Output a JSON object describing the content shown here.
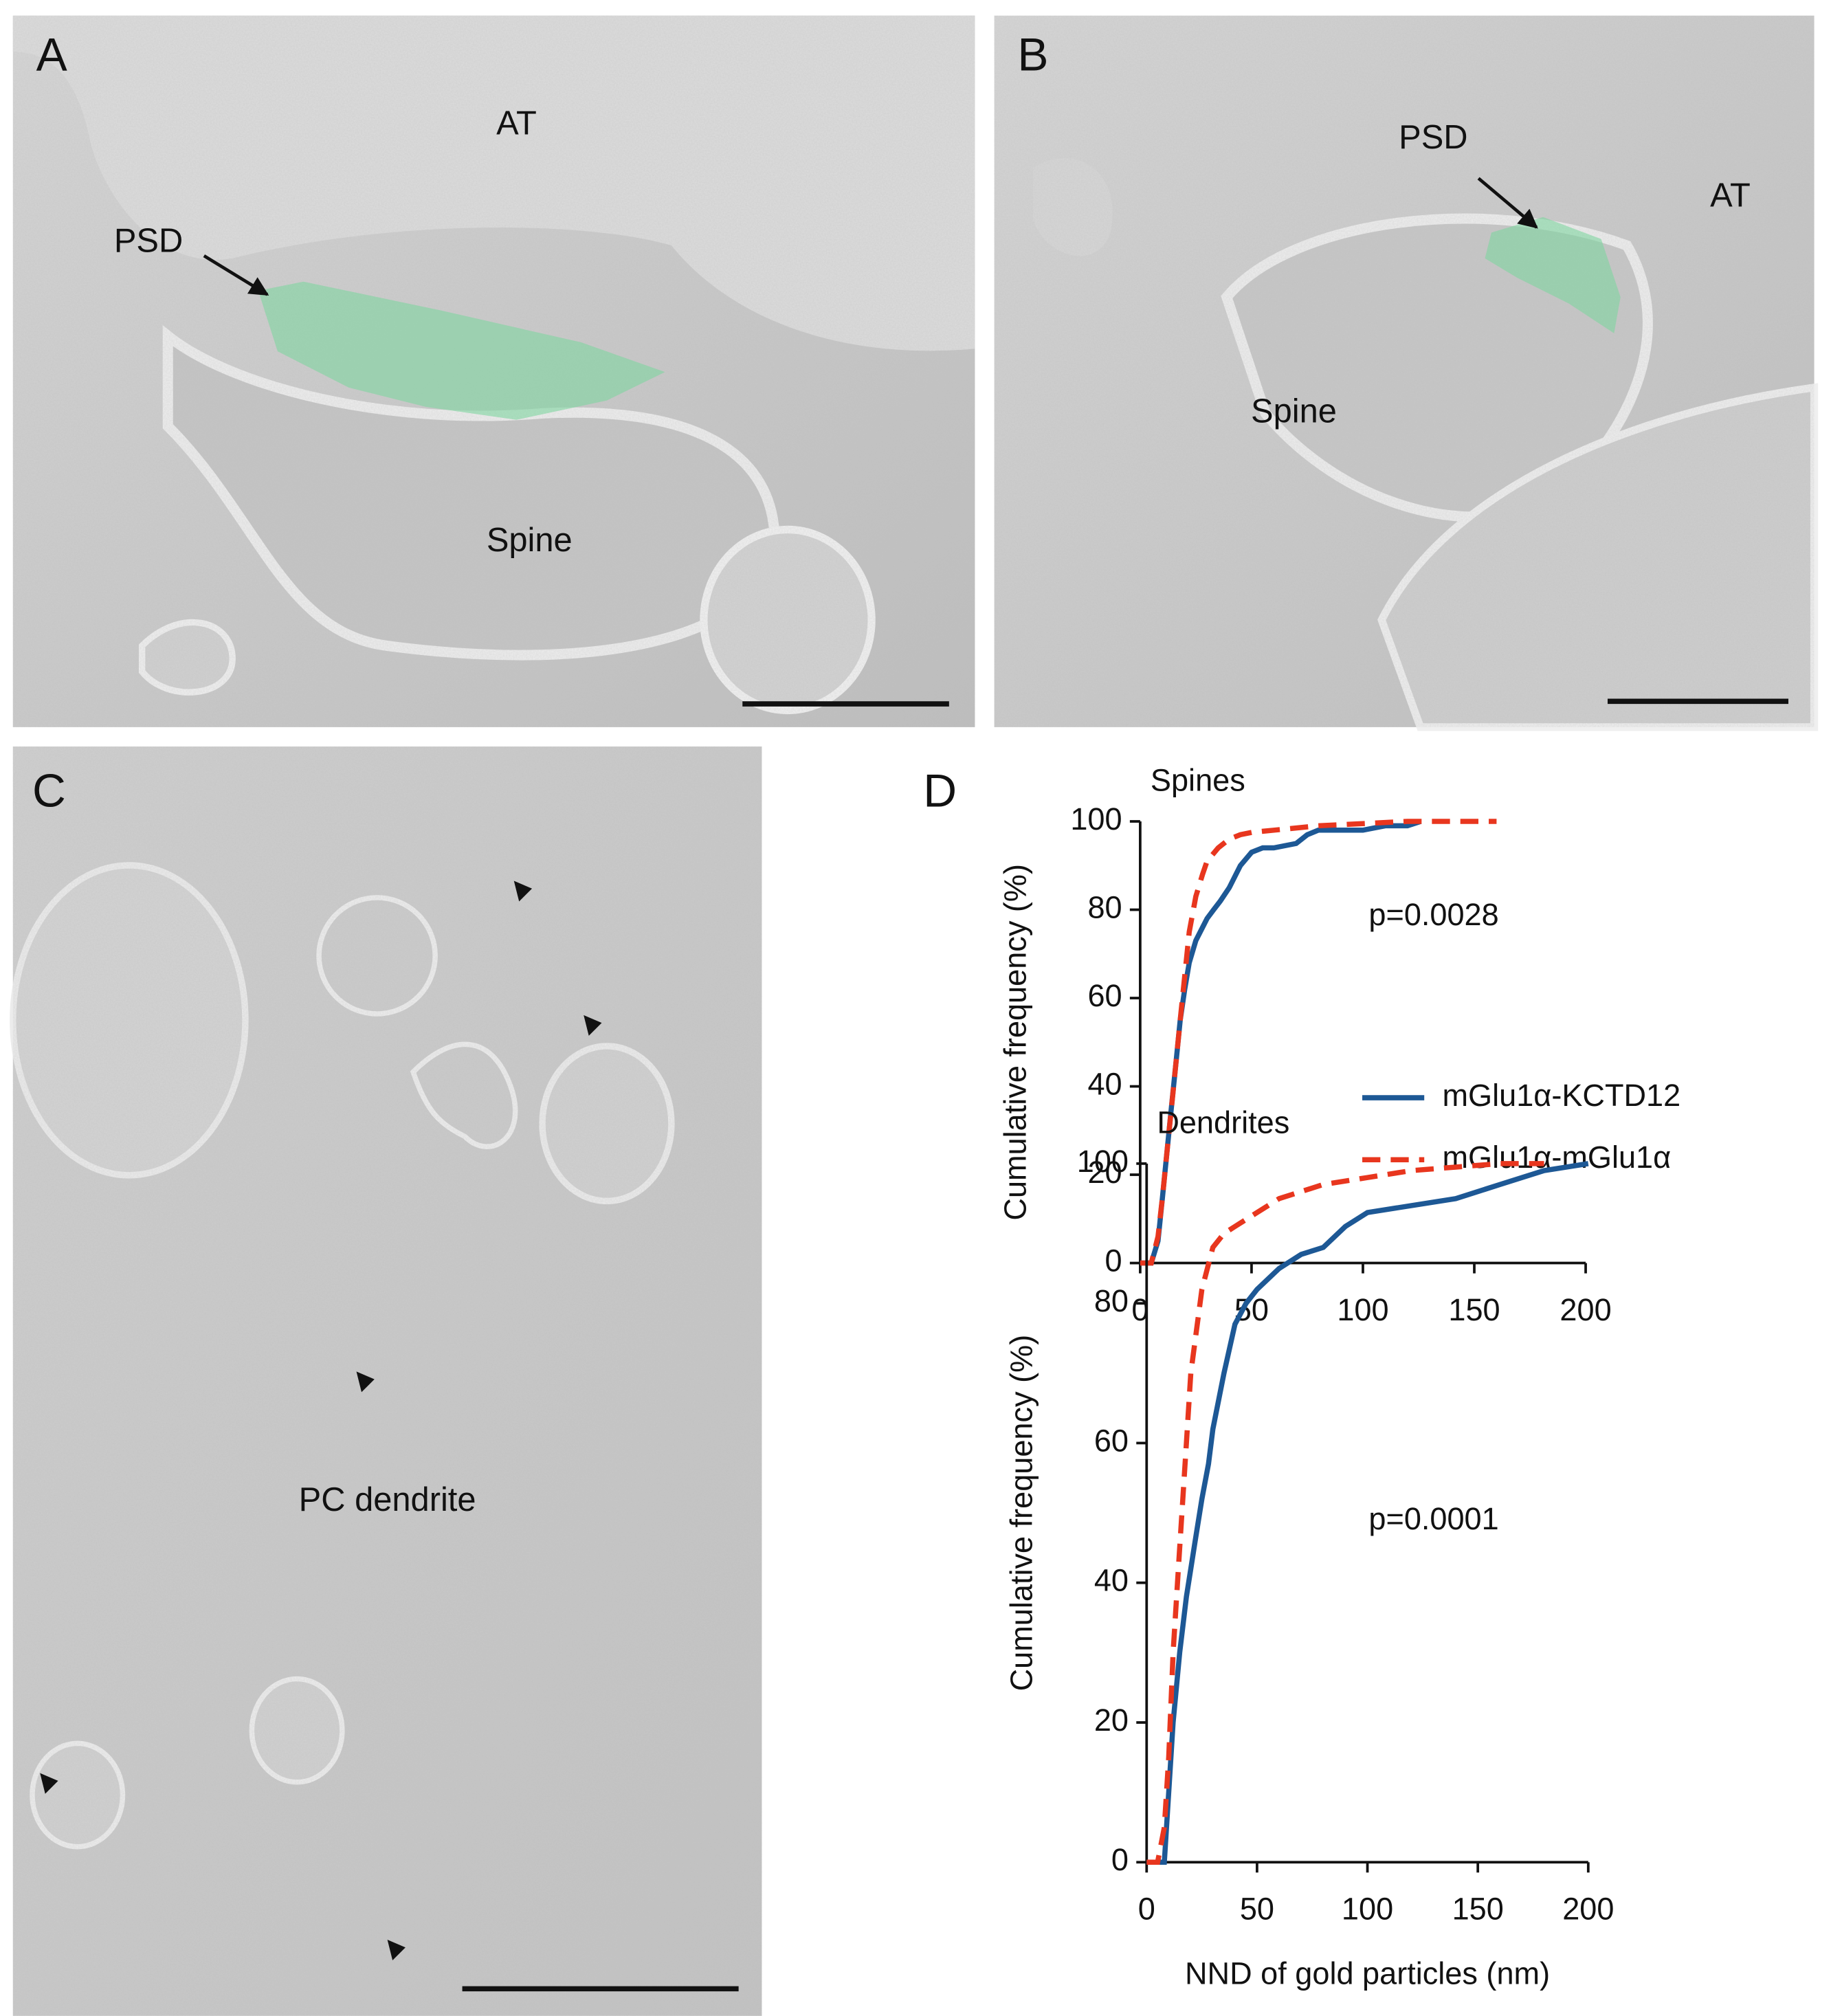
{
  "panels": [
    {
      "label": "A",
      "annotations": [
        "AT",
        "PSD",
        "Spine"
      ]
    },
    {
      "label": "B",
      "annotations": [
        "PSD",
        "AT",
        "Spine"
      ]
    },
    {
      "label": "C",
      "annotations": [
        "PC dendrite"
      ]
    },
    {
      "label": "D"
    }
  ],
  "chart_data": [
    {
      "type": "line",
      "title": "Spines",
      "y_label": "Cumulative frequency (%)",
      "annotation": "p=0.0028",
      "xlim": [
        0,
        200
      ],
      "xticks": [
        0,
        50,
        100,
        150,
        200
      ],
      "ylim": [
        0,
        100
      ],
      "yticks": [
        0,
        20,
        40,
        60,
        80,
        100
      ],
      "legend": "right",
      "series": [
        {
          "name": "mGlu1α-KCTD12",
          "color": "#1d5895",
          "style": "solid",
          "x": [
            0,
            5,
            8,
            10,
            12,
            14,
            16,
            18,
            20,
            22,
            25,
            28,
            30,
            33,
            36,
            40,
            45,
            50,
            55,
            60,
            70,
            75,
            80,
            90,
            100,
            110,
            115,
            120,
            126
          ],
          "values": [
            0,
            0,
            5,
            15,
            25,
            35,
            45,
            55,
            62,
            68,
            73,
            76,
            78,
            80,
            82,
            85,
            90,
            93,
            94,
            94,
            95,
            97,
            98,
            98,
            98,
            99,
            99,
            99,
            100
          ]
        },
        {
          "name": "mGlu1α-mGlu1α",
          "color": "#e8361e",
          "style": "dashed",
          "x": [
            0,
            5,
            8,
            10,
            12,
            15,
            18,
            20,
            22,
            25,
            28,
            30,
            35,
            40,
            45,
            50,
            60,
            80,
            100,
            120,
            140,
            160
          ],
          "values": [
            0,
            0,
            6,
            15,
            25,
            40,
            55,
            65,
            75,
            83,
            88,
            91,
            94,
            96,
            97,
            97.5,
            98,
            99,
            99.5,
            100,
            100,
            100
          ]
        }
      ]
    },
    {
      "type": "line",
      "title": "Dendrites",
      "x_label": "NND of gold particles (nm)",
      "y_label": "Cumulative frequency (%)",
      "annotation": "p=0.0001",
      "xlim": [
        0,
        200
      ],
      "xticks": [
        0,
        50,
        100,
        150,
        200
      ],
      "ylim": [
        0,
        100
      ],
      "yticks": [
        0,
        20,
        40,
        60,
        80,
        100
      ],
      "series": [
        {
          "color": "#1d5895",
          "style": "solid",
          "x": [
            0,
            8,
            10,
            12,
            15,
            18,
            20,
            22,
            25,
            28,
            30,
            35,
            40,
            45,
            50,
            60,
            70,
            80,
            90,
            100,
            120,
            140,
            160,
            180,
            200
          ],
          "values": [
            0,
            0,
            10,
            20,
            30,
            38,
            42,
            46,
            52,
            57,
            62,
            70,
            77,
            80,
            82,
            85,
            87,
            88,
            91,
            93,
            94,
            95,
            97,
            99,
            100
          ]
        },
        {
          "color": "#e8361e",
          "style": "dashed",
          "x": [
            0,
            5,
            8,
            10,
            12,
            15,
            18,
            20,
            25,
            30,
            35,
            40,
            50,
            60,
            80,
            100,
            120,
            140,
            160,
            180
          ],
          "values": [
            0,
            0,
            5,
            15,
            30,
            45,
            60,
            70,
            82,
            88,
            90,
            91,
            93,
            95,
            97,
            98,
            99,
            99.5,
            100,
            100
          ]
        }
      ]
    }
  ]
}
